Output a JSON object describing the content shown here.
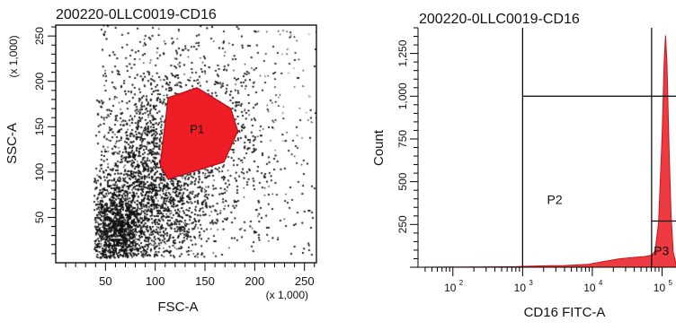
{
  "chart_data": [
    {
      "type": "scatter",
      "title": "200220-0LLC0019-CD16",
      "xlabel": "FSC-A",
      "ylabel": "SSC-A",
      "x_scale_note": "(x 1,000)",
      "y_scale_note": "(x 1,000)",
      "xlim": [
        0,
        262
      ],
      "ylim": [
        0,
        262
      ],
      "x_ticks": [
        "50",
        "100",
        "150",
        "200",
        "250"
      ],
      "y_ticks": [
        "50",
        "100",
        "150",
        "200",
        "250"
      ],
      "gate": {
        "name": "P1",
        "polygon": [
          [
            113,
            182
          ],
          [
            142,
            193
          ],
          [
            176,
            170
          ],
          [
            183,
            145
          ],
          [
            169,
            111
          ],
          [
            113,
            92
          ],
          [
            105,
            108
          ],
          [
            113,
            182
          ]
        ]
      },
      "colors": {
        "events": "#111111",
        "gate": "#ee1c25"
      }
    },
    {
      "type": "area",
      "title": "200220-0LLC0019-CD16",
      "xlabel": "CD16 FITC-A",
      "ylabel": "Count",
      "x_scale": "log",
      "xlim": [
        1.5,
        5.2
      ],
      "ylim": [
        0,
        1400
      ],
      "x_ticks": [
        {
          "base": "10",
          "exp": "2"
        },
        {
          "base": "10",
          "exp": "3"
        },
        {
          "base": "10",
          "exp": "4"
        },
        {
          "base": "10",
          "exp": "5"
        }
      ],
      "y_ticks": [
        "250",
        "500",
        "750",
        "1,000",
        "1,250"
      ],
      "x": [
        1.5,
        2.0,
        2.5,
        2.9,
        3.0,
        3.2,
        3.4,
        3.6,
        3.8,
        3.95,
        4.0,
        4.2,
        4.4,
        4.6,
        4.75,
        4.85,
        4.9,
        4.95,
        5.0,
        5.03,
        5.05,
        5.07,
        5.1,
        5.13,
        5.16,
        5.2
      ],
      "values": [
        0,
        1,
        2,
        3,
        5,
        7,
        9,
        10,
        14,
        17,
        22,
        36,
        50,
        58,
        62,
        70,
        95,
        260,
        760,
        1200,
        1355,
        1200,
        700,
        300,
        90,
        20
      ],
      "gates": [
        {
          "name": "P2",
          "x_range": [
            3.0,
            4.85
          ],
          "y_top": 1000
        },
        {
          "name": "P3",
          "x_range": [
            4.85,
            5.2
          ],
          "y_top": 270
        }
      ],
      "gate_dividers": [
        3.0,
        4.85
      ],
      "colors": {
        "fill": "#ee3b42",
        "line": "#c4161c"
      }
    }
  ]
}
